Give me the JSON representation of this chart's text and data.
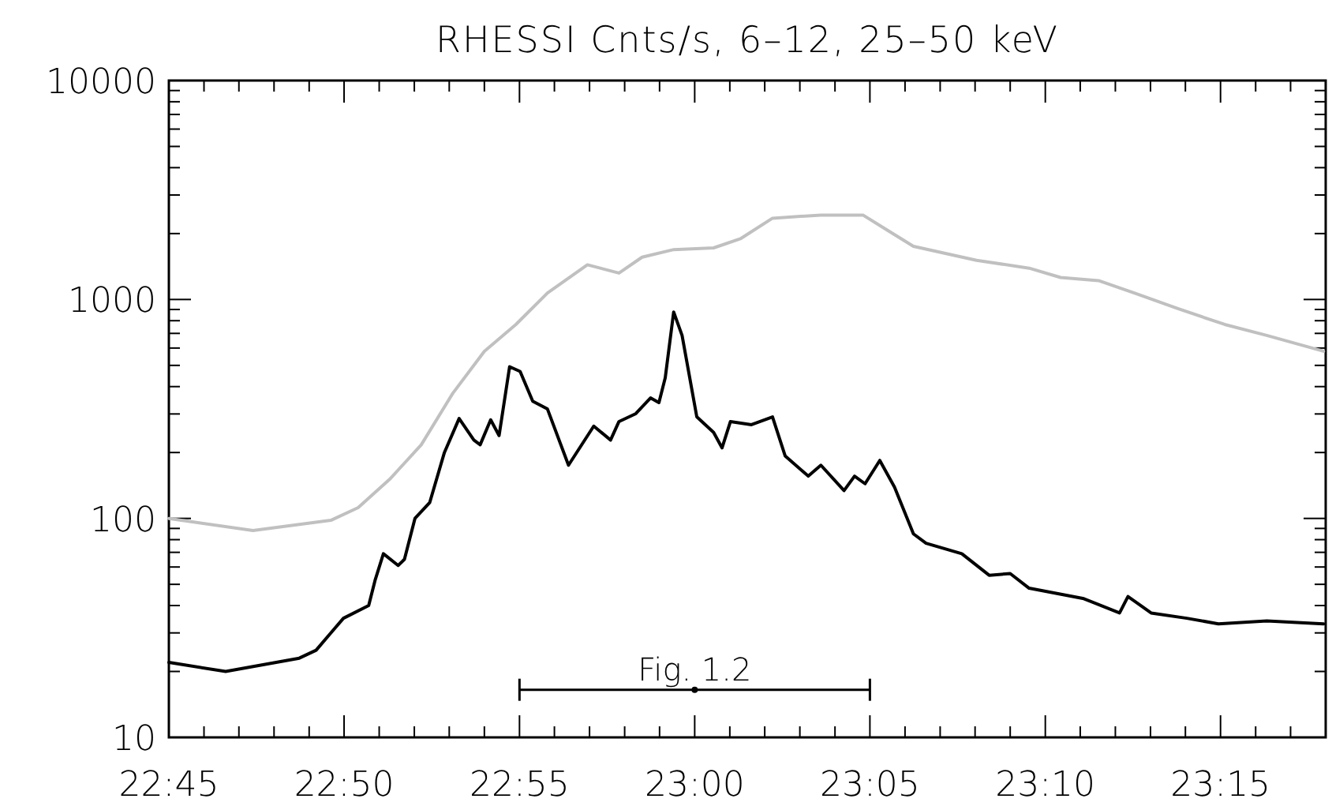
{
  "chart_data": {
    "type": "line",
    "title": "RHESSI Cnts/s, 6–12, 25–50 keV",
    "log": "y",
    "grid": false,
    "marker": "none",
    "line_style": "solid",
    "xlim": [
      22.75,
      23.3
    ],
    "ylim": [
      10,
      10000
    ],
    "xticks": [
      {
        "value": 22.75,
        "label": "22:45"
      },
      {
        "value": 22.7667,
        "label": null
      },
      {
        "value": 22.7833,
        "label": null
      },
      {
        "value": 22.8,
        "label": null
      },
      {
        "value": 22.8167,
        "label": null
      },
      {
        "value": 22.8333,
        "label": "22:50"
      },
      {
        "value": 22.85,
        "label": null
      },
      {
        "value": 22.8667,
        "label": null
      },
      {
        "value": 22.8833,
        "label": null
      },
      {
        "value": 22.9,
        "label": null
      },
      {
        "value": 22.9167,
        "label": "22:55"
      },
      {
        "value": 22.9333,
        "label": null
      },
      {
        "value": 22.95,
        "label": null
      },
      {
        "value": 22.9667,
        "label": null
      },
      {
        "value": 22.9833,
        "label": null
      },
      {
        "value": 23,
        "label": "23:00"
      },
      {
        "value": 23.0167,
        "label": null
      },
      {
        "value": 23.0333,
        "label": null
      },
      {
        "value": 23.05,
        "label": null
      },
      {
        "value": 23.0667,
        "label": null
      },
      {
        "value": 23.0833,
        "label": "23:05"
      },
      {
        "value": 23.1,
        "label": null
      },
      {
        "value": 23.1167,
        "label": null
      },
      {
        "value": 23.1333,
        "label": null
      },
      {
        "value": 23.15,
        "label": null
      },
      {
        "value": 23.1667,
        "label": "23:10"
      },
      {
        "value": 23.1833,
        "label": null
      },
      {
        "value": 23.2,
        "label": null
      },
      {
        "value": 23.2167,
        "label": null
      },
      {
        "value": 23.2333,
        "label": null
      },
      {
        "value": 23.25,
        "label": "23:15"
      },
      {
        "value": 23.2667,
        "label": null
      },
      {
        "value": 23.2833,
        "label": null
      }
    ],
    "yticks": [
      10,
      {
        "value": 20,
        "label": null
      },
      {
        "value": 30,
        "label": null
      },
      {
        "value": 40,
        "label": null
      },
      {
        "value": 50,
        "label": null
      },
      {
        "value": 60,
        "label": null
      },
      {
        "value": 70,
        "label": null
      },
      {
        "value": 80,
        "label": null
      },
      {
        "value": 90,
        "label": null
      },
      100,
      {
        "value": 200,
        "label": null
      },
      {
        "value": 300,
        "label": null
      },
      {
        "value": 400,
        "label": null
      },
      {
        "value": 500,
        "label": null
      },
      {
        "value": 600,
        "label": null
      },
      {
        "value": 700,
        "label": null
      },
      {
        "value": 800,
        "label": null
      },
      {
        "value": 900,
        "label": null
      },
      1000,
      {
        "value": 2000,
        "label": null
      },
      {
        "value": 3000,
        "label": null
      },
      {
        "value": 4000,
        "label": null
      },
      {
        "value": 5000,
        "label": null
      },
      {
        "value": 6000,
        "label": null
      },
      {
        "value": 7000,
        "label": null
      },
      {
        "value": 8000,
        "label": null
      },
      {
        "value": 9000,
        "label": null
      },
      10000
    ],
    "annotations": [
      {
        "text": "Fig. 1.2",
        "x": 23,
        "y": 16.5
      }
    ],
    "series": [
      {
        "type": "scatter",
        "marker": "circle",
        "color": "#000000",
        "x": [
          23
        ],
        "values": [
          16.5
        ],
        "xerrors": [
          0.0833
        ]
      },
      {
        "color": "#c0c0c0",
        "x": [
          22.75,
          22.79,
          22.827,
          22.84,
          22.855,
          22.87,
          22.885,
          22.9,
          22.915,
          22.93,
          22.949,
          22.964,
          22.975,
          22.99,
          23.009,
          23.022,
          23.037,
          23.06,
          23.08,
          23.092,
          23.104,
          23.134,
          23.159,
          23.174,
          23.192,
          23.209,
          23.23,
          23.252,
          23.272,
          23.299
        ],
        "values": [
          100,
          88,
          98,
          112,
          151,
          217,
          373,
          580,
          769,
          1070,
          1440,
          1320,
          1560,
          1690,
          1720,
          1900,
          2350,
          2430,
          2430,
          2060,
          1750,
          1510,
          1390,
          1260,
          1220,
          1070,
          906,
          769,
          685,
          580
        ]
      },
      {
        "color": "#000000",
        "x": [
          22.75,
          22.777,
          22.812,
          22.82,
          22.827,
          22.833,
          22.845,
          22.848,
          22.852,
          22.859,
          22.862,
          22.867,
          22.874,
          22.881,
          22.888,
          22.895,
          22.898,
          22.903,
          22.907,
          22.912,
          22.917,
          22.923,
          22.93,
          22.94,
          22.952,
          22.96,
          22.964,
          22.972,
          22.979,
          22.983,
          22.986,
          22.99,
          22.994,
          23.001,
          23.009,
          23.013,
          23.017,
          23.027,
          23.037,
          23.043,
          23.054,
          23.06,
          23.071,
          23.076,
          23.081,
          23.088,
          23.095,
          23.104,
          23.11,
          23.127,
          23.14,
          23.15,
          23.159,
          23.185,
          23.202,
          23.206,
          23.217,
          23.234,
          23.249,
          23.272,
          23.299
        ],
        "values": [
          22,
          20,
          23,
          25,
          30,
          35,
          40,
          52,
          69,
          61,
          65,
          100,
          118,
          200,
          286,
          228,
          217,
          282,
          239,
          493,
          469,
          343,
          316,
          175,
          264,
          228,
          277,
          301,
          355,
          338,
          439,
          877,
          685,
          291,
          247,
          210,
          277,
          268,
          291,
          193,
          156,
          175,
          134,
          156,
          144,
          184,
          139,
          85,
          77,
          69,
          55,
          56,
          48,
          43,
          37,
          44,
          37,
          35,
          33,
          34,
          33
        ]
      }
    ]
  }
}
